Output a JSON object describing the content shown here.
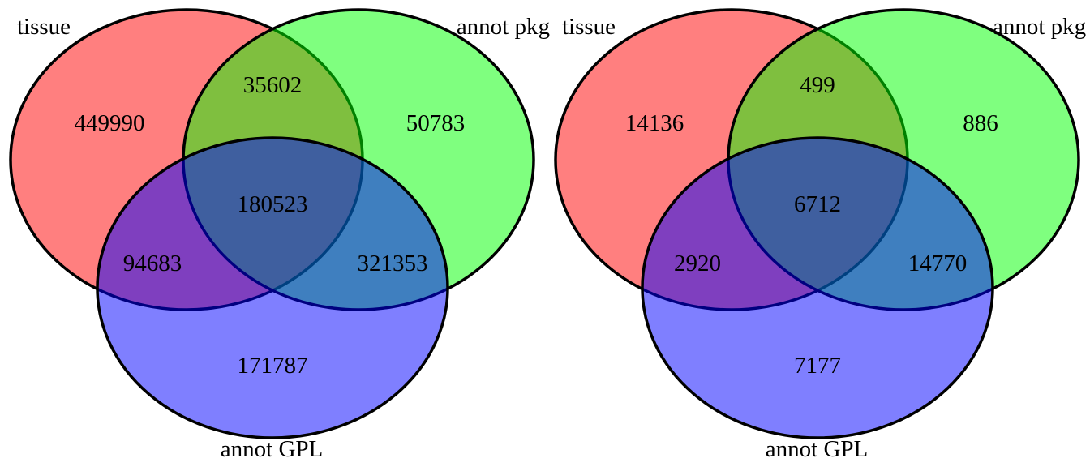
{
  "colors": {
    "set_a": "#ff0000",
    "set_b": "#00ff00",
    "set_c": "#0000ff",
    "outline": "#000000"
  },
  "venns": [
    {
      "sets": {
        "a": "tissue",
        "b": "annot pkg",
        "c": "annot GPL"
      },
      "regions": {
        "a_only": "449990",
        "ab": "35602",
        "b_only": "50783",
        "abc": "180523",
        "ac": "94683",
        "bc": "321353",
        "c_only": "171787"
      }
    },
    {
      "sets": {
        "a": "tissue",
        "b": "annot pkg",
        "c": "annot GPL"
      },
      "regions": {
        "a_only": "14136",
        "ab": "499",
        "b_only": "886",
        "abc": "6712",
        "ac": "2920",
        "bc": "14770",
        "c_only": "7177"
      }
    }
  ]
}
